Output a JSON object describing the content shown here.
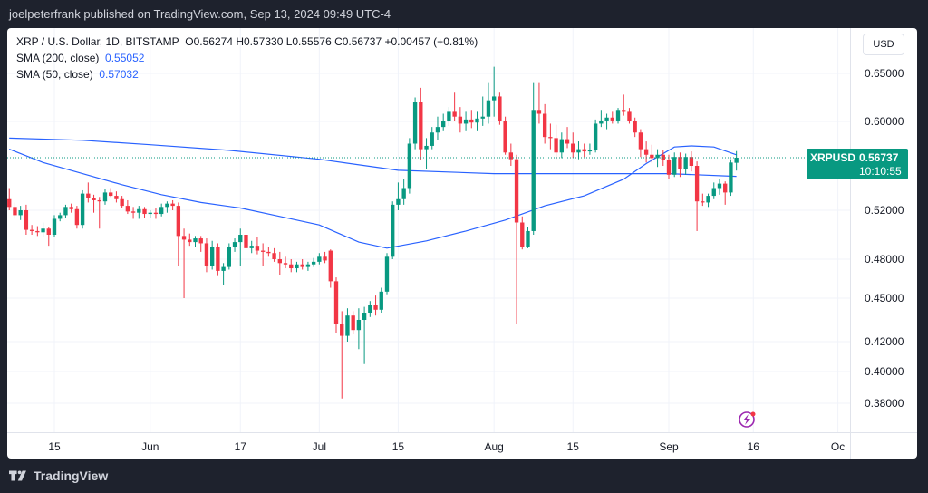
{
  "header": {
    "published": "joelpeterfrank published on TradingView.com, Sep 13, 2024 09:49 UTC-4"
  },
  "legend": {
    "symbol_line": "XRP / U.S. Dollar, 1D, BITSTAMP",
    "ohlc": "O0.56274 H0.57330 L0.55576 C0.56737 +0.00457 (+0.81%)",
    "sma200_label": "SMA (200, close)",
    "sma200_value": "0.55052",
    "sma50_label": "SMA (50, close)",
    "sma50_value": "0.57032"
  },
  "currency": "USD",
  "price_tag": {
    "symbol": "XRPUSD",
    "price": "0.56737",
    "countdown": "10:10:55"
  },
  "footer": {
    "brand": "TradingView"
  },
  "colors": {
    "up": "#089981",
    "down": "#f23645",
    "sma": "#2962ff",
    "grid": "#f0f3fa"
  },
  "chart_data": {
    "type": "candlestick",
    "title": "XRP / U.S. Dollar, 1D, BITSTAMP",
    "y_ticks": [
      0.65,
      0.6,
      0.52,
      0.48,
      0.45,
      0.42,
      0.4,
      0.38
    ],
    "y_tick_labels": [
      "0.65000",
      "0.60000",
      "0.52000",
      "0.48000",
      "0.45000",
      "0.42000",
      "0.40000",
      "0.38000"
    ],
    "x_tick_labels": [
      "15",
      "Jun",
      "17",
      "Jul",
      "15",
      "Aug",
      "15",
      "Sep",
      "16",
      "Oc"
    ],
    "x_tick_dates": [
      "2024-05-15",
      "2024-06-01",
      "2024-06-17",
      "2024-07-01",
      "2024-07-15",
      "2024-08-01",
      "2024-08-15",
      "2024-09-01",
      "2024-09-16",
      "2024-10-01"
    ],
    "candles": [
      {
        "d": "2024-05-07",
        "o": 0.53,
        "h": 0.54,
        "l": 0.52,
        "c": 0.523
      },
      {
        "d": "2024-05-08",
        "o": 0.523,
        "h": 0.527,
        "l": 0.513,
        "c": 0.516
      },
      {
        "d": "2024-05-09",
        "o": 0.516,
        "h": 0.524,
        "l": 0.512,
        "c": 0.52
      },
      {
        "d": "2024-05-10",
        "o": 0.52,
        "h": 0.525,
        "l": 0.5,
        "c": 0.504
      },
      {
        "d": "2024-05-11",
        "o": 0.504,
        "h": 0.508,
        "l": 0.5,
        "c": 0.503
      },
      {
        "d": "2024-05-12",
        "o": 0.503,
        "h": 0.507,
        "l": 0.499,
        "c": 0.502
      },
      {
        "d": "2024-05-13",
        "o": 0.502,
        "h": 0.51,
        "l": 0.498,
        "c": 0.505
      },
      {
        "d": "2024-05-14",
        "o": 0.505,
        "h": 0.506,
        "l": 0.491,
        "c": 0.5
      },
      {
        "d": "2024-05-15",
        "o": 0.5,
        "h": 0.516,
        "l": 0.498,
        "c": 0.513
      },
      {
        "d": "2024-05-16",
        "o": 0.513,
        "h": 0.518,
        "l": 0.511,
        "c": 0.516
      },
      {
        "d": "2024-05-17",
        "o": 0.516,
        "h": 0.525,
        "l": 0.514,
        "c": 0.523
      },
      {
        "d": "2024-05-18",
        "o": 0.523,
        "h": 0.526,
        "l": 0.518,
        "c": 0.521
      },
      {
        "d": "2024-05-19",
        "o": 0.521,
        "h": 0.524,
        "l": 0.505,
        "c": 0.508
      },
      {
        "d": "2024-05-20",
        "o": 0.508,
        "h": 0.538,
        "l": 0.505,
        "c": 0.535
      },
      {
        "d": "2024-05-21",
        "o": 0.535,
        "h": 0.545,
        "l": 0.527,
        "c": 0.531
      },
      {
        "d": "2024-05-22",
        "o": 0.531,
        "h": 0.534,
        "l": 0.518,
        "c": 0.529
      },
      {
        "d": "2024-05-23",
        "o": 0.529,
        "h": 0.532,
        "l": 0.505,
        "c": 0.528
      },
      {
        "d": "2024-05-24",
        "o": 0.528,
        "h": 0.539,
        "l": 0.525,
        "c": 0.536
      },
      {
        "d": "2024-05-25",
        "o": 0.536,
        "h": 0.54,
        "l": 0.532,
        "c": 0.533
      },
      {
        "d": "2024-05-26",
        "o": 0.533,
        "h": 0.537,
        "l": 0.527,
        "c": 0.53
      },
      {
        "d": "2024-05-27",
        "o": 0.53,
        "h": 0.533,
        "l": 0.522,
        "c": 0.524
      },
      {
        "d": "2024-05-28",
        "o": 0.524,
        "h": 0.529,
        "l": 0.517,
        "c": 0.519
      },
      {
        "d": "2024-05-29",
        "o": 0.519,
        "h": 0.523,
        "l": 0.513,
        "c": 0.518
      },
      {
        "d": "2024-05-30",
        "o": 0.518,
        "h": 0.524,
        "l": 0.513,
        "c": 0.521
      },
      {
        "d": "2024-05-31",
        "o": 0.521,
        "h": 0.523,
        "l": 0.514,
        "c": 0.517
      },
      {
        "d": "2024-06-01",
        "o": 0.517,
        "h": 0.52,
        "l": 0.514,
        "c": 0.518
      },
      {
        "d": "2024-06-02",
        "o": 0.518,
        "h": 0.522,
        "l": 0.513,
        "c": 0.517
      },
      {
        "d": "2024-06-03",
        "o": 0.517,
        "h": 0.526,
        "l": 0.515,
        "c": 0.523
      },
      {
        "d": "2024-06-04",
        "o": 0.523,
        "h": 0.528,
        "l": 0.518,
        "c": 0.526
      },
      {
        "d": "2024-06-05",
        "o": 0.526,
        "h": 0.529,
        "l": 0.52,
        "c": 0.524
      },
      {
        "d": "2024-06-06",
        "o": 0.524,
        "h": 0.527,
        "l": 0.475,
        "c": 0.499
      },
      {
        "d": "2024-06-07",
        "o": 0.499,
        "h": 0.505,
        "l": 0.45,
        "c": 0.496
      },
      {
        "d": "2024-06-08",
        "o": 0.496,
        "h": 0.501,
        "l": 0.491,
        "c": 0.494
      },
      {
        "d": "2024-06-09",
        "o": 0.494,
        "h": 0.499,
        "l": 0.49,
        "c": 0.497
      },
      {
        "d": "2024-06-10",
        "o": 0.497,
        "h": 0.499,
        "l": 0.486,
        "c": 0.493
      },
      {
        "d": "2024-06-11",
        "o": 0.493,
        "h": 0.497,
        "l": 0.47,
        "c": 0.475
      },
      {
        "d": "2024-06-12",
        "o": 0.475,
        "h": 0.495,
        "l": 0.472,
        "c": 0.49
      },
      {
        "d": "2024-06-13",
        "o": 0.49,
        "h": 0.493,
        "l": 0.467,
        "c": 0.471
      },
      {
        "d": "2024-06-14",
        "o": 0.471,
        "h": 0.477,
        "l": 0.46,
        "c": 0.474
      },
      {
        "d": "2024-06-15",
        "o": 0.474,
        "h": 0.493,
        "l": 0.472,
        "c": 0.49
      },
      {
        "d": "2024-06-16",
        "o": 0.49,
        "h": 0.497,
        "l": 0.486,
        "c": 0.494
      },
      {
        "d": "2024-06-17",
        "o": 0.494,
        "h": 0.505,
        "l": 0.475,
        "c": 0.5
      },
      {
        "d": "2024-06-18",
        "o": 0.5,
        "h": 0.505,
        "l": 0.486,
        "c": 0.489
      },
      {
        "d": "2024-06-19",
        "o": 0.489,
        "h": 0.495,
        "l": 0.485,
        "c": 0.491
      },
      {
        "d": "2024-06-20",
        "o": 0.491,
        "h": 0.498,
        "l": 0.484,
        "c": 0.487
      },
      {
        "d": "2024-06-21",
        "o": 0.487,
        "h": 0.493,
        "l": 0.475,
        "c": 0.486
      },
      {
        "d": "2024-06-22",
        "o": 0.486,
        "h": 0.49,
        "l": 0.482,
        "c": 0.485
      },
      {
        "d": "2024-06-23",
        "o": 0.485,
        "h": 0.489,
        "l": 0.478,
        "c": 0.48
      },
      {
        "d": "2024-06-24",
        "o": 0.48,
        "h": 0.486,
        "l": 0.468,
        "c": 0.477
      },
      {
        "d": "2024-06-25",
        "o": 0.477,
        "h": 0.482,
        "l": 0.473,
        "c": 0.476
      },
      {
        "d": "2024-06-26",
        "o": 0.476,
        "h": 0.48,
        "l": 0.47,
        "c": 0.473
      },
      {
        "d": "2024-06-27",
        "o": 0.473,
        "h": 0.478,
        "l": 0.47,
        "c": 0.476
      },
      {
        "d": "2024-06-28",
        "o": 0.476,
        "h": 0.48,
        "l": 0.472,
        "c": 0.474
      },
      {
        "d": "2024-06-29",
        "o": 0.474,
        "h": 0.478,
        "l": 0.471,
        "c": 0.476
      },
      {
        "d": "2024-06-30",
        "o": 0.476,
        "h": 0.481,
        "l": 0.474,
        "c": 0.478
      },
      {
        "d": "2024-07-01",
        "o": 0.478,
        "h": 0.485,
        "l": 0.476,
        "c": 0.482
      },
      {
        "d": "2024-07-02",
        "o": 0.482,
        "h": 0.486,
        "l": 0.477,
        "c": 0.479
      },
      {
        "d": "2024-07-03",
        "o": 0.487,
        "h": 0.488,
        "l": 0.458,
        "c": 0.463
      },
      {
        "d": "2024-07-04",
        "o": 0.463,
        "h": 0.466,
        "l": 0.426,
        "c": 0.432
      },
      {
        "d": "2024-07-05",
        "o": 0.432,
        "h": 0.441,
        "l": 0.383,
        "c": 0.424
      },
      {
        "d": "2024-07-06",
        "o": 0.424,
        "h": 0.443,
        "l": 0.42,
        "c": 0.438
      },
      {
        "d": "2024-07-07",
        "o": 0.438,
        "h": 0.441,
        "l": 0.425,
        "c": 0.428
      },
      {
        "d": "2024-07-08",
        "o": 0.428,
        "h": 0.443,
        "l": 0.415,
        "c": 0.435
      },
      {
        "d": "2024-07-09",
        "o": 0.435,
        "h": 0.444,
        "l": 0.405,
        "c": 0.44
      },
      {
        "d": "2024-07-10",
        "o": 0.44,
        "h": 0.448,
        "l": 0.437,
        "c": 0.445
      },
      {
        "d": "2024-07-11",
        "o": 0.445,
        "h": 0.452,
        "l": 0.438,
        "c": 0.442
      },
      {
        "d": "2024-07-12",
        "o": 0.442,
        "h": 0.458,
        "l": 0.44,
        "c": 0.455
      },
      {
        "d": "2024-07-13",
        "o": 0.455,
        "h": 0.485,
        "l": 0.453,
        "c": 0.482
      },
      {
        "d": "2024-07-14",
        "o": 0.482,
        "h": 0.528,
        "l": 0.48,
        "c": 0.525
      },
      {
        "d": "2024-07-15",
        "o": 0.525,
        "h": 0.545,
        "l": 0.52,
        "c": 0.53
      },
      {
        "d": "2024-07-16",
        "o": 0.53,
        "h": 0.548,
        "l": 0.525,
        "c": 0.54
      },
      {
        "d": "2024-07-17",
        "o": 0.54,
        "h": 0.585,
        "l": 0.535,
        "c": 0.58
      },
      {
        "d": "2024-07-18",
        "o": 0.58,
        "h": 0.625,
        "l": 0.575,
        "c": 0.62
      },
      {
        "d": "2024-07-19",
        "o": 0.62,
        "h": 0.635,
        "l": 0.565,
        "c": 0.575
      },
      {
        "d": "2024-07-20",
        "o": 0.575,
        "h": 0.585,
        "l": 0.557,
        "c": 0.578
      },
      {
        "d": "2024-07-21",
        "o": 0.578,
        "h": 0.595,
        "l": 0.575,
        "c": 0.59
      },
      {
        "d": "2024-07-22",
        "o": 0.59,
        "h": 0.605,
        "l": 0.583,
        "c": 0.595
      },
      {
        "d": "2024-07-23",
        "o": 0.595,
        "h": 0.608,
        "l": 0.592,
        "c": 0.6
      },
      {
        "d": "2024-07-24",
        "o": 0.6,
        "h": 0.615,
        "l": 0.596,
        "c": 0.61
      },
      {
        "d": "2024-07-25",
        "o": 0.61,
        "h": 0.63,
        "l": 0.6,
        "c": 0.605
      },
      {
        "d": "2024-07-26",
        "o": 0.605,
        "h": 0.615,
        "l": 0.59,
        "c": 0.598
      },
      {
        "d": "2024-07-27",
        "o": 0.598,
        "h": 0.61,
        "l": 0.592,
        "c": 0.602
      },
      {
        "d": "2024-07-28",
        "o": 0.602,
        "h": 0.612,
        "l": 0.594,
        "c": 0.599
      },
      {
        "d": "2024-07-29",
        "o": 0.599,
        "h": 0.61,
        "l": 0.592,
        "c": 0.603
      },
      {
        "d": "2024-07-30",
        "o": 0.603,
        "h": 0.626,
        "l": 0.596,
        "c": 0.605
      },
      {
        "d": "2024-07-31",
        "o": 0.605,
        "h": 0.64,
        "l": 0.598,
        "c": 0.622
      },
      {
        "d": "2024-08-01",
        "o": 0.622,
        "h": 0.657,
        "l": 0.605,
        "c": 0.626
      },
      {
        "d": "2024-08-02",
        "o": 0.626,
        "h": 0.63,
        "l": 0.597,
        "c": 0.6
      },
      {
        "d": "2024-08-03",
        "o": 0.6,
        "h": 0.605,
        "l": 0.57,
        "c": 0.572
      },
      {
        "d": "2024-08-04",
        "o": 0.572,
        "h": 0.58,
        "l": 0.56,
        "c": 0.566
      },
      {
        "d": "2024-08-05",
        "o": 0.566,
        "h": 0.57,
        "l": 0.432,
        "c": 0.51
      },
      {
        "d": "2024-08-06",
        "o": 0.51,
        "h": 0.515,
        "l": 0.488,
        "c": 0.49
      },
      {
        "d": "2024-08-07",
        "o": 0.49,
        "h": 0.506,
        "l": 0.489,
        "c": 0.503
      },
      {
        "d": "2024-08-08",
        "o": 0.503,
        "h": 0.64,
        "l": 0.5,
        "c": 0.612
      },
      {
        "d": "2024-08-09",
        "o": 0.612,
        "h": 0.64,
        "l": 0.598,
        "c": 0.608
      },
      {
        "d": "2024-08-10",
        "o": 0.608,
        "h": 0.618,
        "l": 0.58,
        "c": 0.586
      },
      {
        "d": "2024-08-11",
        "o": 0.586,
        "h": 0.598,
        "l": 0.575,
        "c": 0.585
      },
      {
        "d": "2024-08-12",
        "o": 0.585,
        "h": 0.597,
        "l": 0.566,
        "c": 0.572
      },
      {
        "d": "2024-08-13",
        "o": 0.572,
        "h": 0.59,
        "l": 0.567,
        "c": 0.584
      },
      {
        "d": "2024-08-14",
        "o": 0.584,
        "h": 0.595,
        "l": 0.576,
        "c": 0.58
      },
      {
        "d": "2024-08-15",
        "o": 0.58,
        "h": 0.59,
        "l": 0.567,
        "c": 0.572
      },
      {
        "d": "2024-08-16",
        "o": 0.572,
        "h": 0.582,
        "l": 0.566,
        "c": 0.575
      },
      {
        "d": "2024-08-17",
        "o": 0.575,
        "h": 0.58,
        "l": 0.568,
        "c": 0.573
      },
      {
        "d": "2024-08-18",
        "o": 0.573,
        "h": 0.58,
        "l": 0.57,
        "c": 0.574
      },
      {
        "d": "2024-08-19",
        "o": 0.574,
        "h": 0.602,
        "l": 0.572,
        "c": 0.598
      },
      {
        "d": "2024-08-20",
        "o": 0.598,
        "h": 0.612,
        "l": 0.595,
        "c": 0.601
      },
      {
        "d": "2024-08-21",
        "o": 0.601,
        "h": 0.608,
        "l": 0.593,
        "c": 0.604
      },
      {
        "d": "2024-08-22",
        "o": 0.604,
        "h": 0.61,
        "l": 0.598,
        "c": 0.601
      },
      {
        "d": "2024-08-23",
        "o": 0.601,
        "h": 0.614,
        "l": 0.598,
        "c": 0.612
      },
      {
        "d": "2024-08-24",
        "o": 0.612,
        "h": 0.628,
        "l": 0.606,
        "c": 0.61
      },
      {
        "d": "2024-08-25",
        "o": 0.61,
        "h": 0.614,
        "l": 0.598,
        "c": 0.6
      },
      {
        "d": "2024-08-26",
        "o": 0.6,
        "h": 0.604,
        "l": 0.586,
        "c": 0.59
      },
      {
        "d": "2024-08-27",
        "o": 0.59,
        "h": 0.593,
        "l": 0.568,
        "c": 0.575
      },
      {
        "d": "2024-08-28",
        "o": 0.575,
        "h": 0.582,
        "l": 0.563,
        "c": 0.57
      },
      {
        "d": "2024-08-29",
        "o": 0.57,
        "h": 0.579,
        "l": 0.563,
        "c": 0.567
      },
      {
        "d": "2024-08-30",
        "o": 0.567,
        "h": 0.575,
        "l": 0.559,
        "c": 0.57
      },
      {
        "d": "2024-08-31",
        "o": 0.57,
        "h": 0.574,
        "l": 0.56,
        "c": 0.565
      },
      {
        "d": "2024-09-01",
        "o": 0.565,
        "h": 0.57,
        "l": 0.548,
        "c": 0.552
      },
      {
        "d": "2024-09-02",
        "o": 0.552,
        "h": 0.572,
        "l": 0.55,
        "c": 0.568
      },
      {
        "d": "2024-09-03",
        "o": 0.568,
        "h": 0.572,
        "l": 0.55,
        "c": 0.557
      },
      {
        "d": "2024-09-04",
        "o": 0.557,
        "h": 0.571,
        "l": 0.552,
        "c": 0.568
      },
      {
        "d": "2024-09-05",
        "o": 0.568,
        "h": 0.573,
        "l": 0.555,
        "c": 0.56
      },
      {
        "d": "2024-09-06",
        "o": 0.56,
        "h": 0.564,
        "l": 0.503,
        "c": 0.528
      },
      {
        "d": "2024-09-07",
        "o": 0.528,
        "h": 0.535,
        "l": 0.524,
        "c": 0.527
      },
      {
        "d": "2024-09-08",
        "o": 0.527,
        "h": 0.535,
        "l": 0.523,
        "c": 0.533
      },
      {
        "d": "2024-09-09",
        "o": 0.533,
        "h": 0.545,
        "l": 0.53,
        "c": 0.54
      },
      {
        "d": "2024-09-10",
        "o": 0.54,
        "h": 0.548,
        "l": 0.534,
        "c": 0.544
      },
      {
        "d": "2024-09-11",
        "o": 0.544,
        "h": 0.546,
        "l": 0.525,
        "c": 0.536
      },
      {
        "d": "2024-09-12",
        "o": 0.536,
        "h": 0.566,
        "l": 0.533,
        "c": 0.563
      },
      {
        "d": "2024-09-13",
        "o": 0.56274,
        "h": 0.5733,
        "l": 0.55576,
        "c": 0.56737
      }
    ],
    "series": [
      {
        "name": "SMA (200, close)",
        "points": [
          [
            "2024-05-07",
            0.585
          ],
          [
            "2024-05-20",
            0.583
          ],
          [
            "2024-06-01",
            0.579
          ],
          [
            "2024-06-15",
            0.574
          ],
          [
            "2024-07-01",
            0.566
          ],
          [
            "2024-07-15",
            0.556
          ],
          [
            "2024-08-01",
            0.553
          ],
          [
            "2024-08-15",
            0.553
          ],
          [
            "2024-09-01",
            0.553
          ],
          [
            "2024-09-13",
            0.5505
          ]
        ]
      },
      {
        "name": "SMA (50, close)",
        "points": [
          [
            "2024-05-07",
            0.575
          ],
          [
            "2024-05-13",
            0.563
          ],
          [
            "2024-05-20",
            0.553
          ],
          [
            "2024-05-27",
            0.543
          ],
          [
            "2024-06-03",
            0.534
          ],
          [
            "2024-06-10",
            0.527
          ],
          [
            "2024-06-17",
            0.522
          ],
          [
            "2024-06-24",
            0.515
          ],
          [
            "2024-07-01",
            0.508
          ],
          [
            "2024-07-08",
            0.494
          ],
          [
            "2024-07-13",
            0.489
          ],
          [
            "2024-07-20",
            0.495
          ],
          [
            "2024-07-27",
            0.503
          ],
          [
            "2024-08-03",
            0.512
          ],
          [
            "2024-08-10",
            0.524
          ],
          [
            "2024-08-17",
            0.533
          ],
          [
            "2024-08-24",
            0.548
          ],
          [
            "2024-08-28",
            0.562
          ],
          [
            "2024-09-02",
            0.577
          ],
          [
            "2024-09-05",
            0.578
          ],
          [
            "2024-09-09",
            0.577
          ],
          [
            "2024-09-13",
            0.57
          ]
        ]
      }
    ],
    "last_price": 0.56737
  }
}
